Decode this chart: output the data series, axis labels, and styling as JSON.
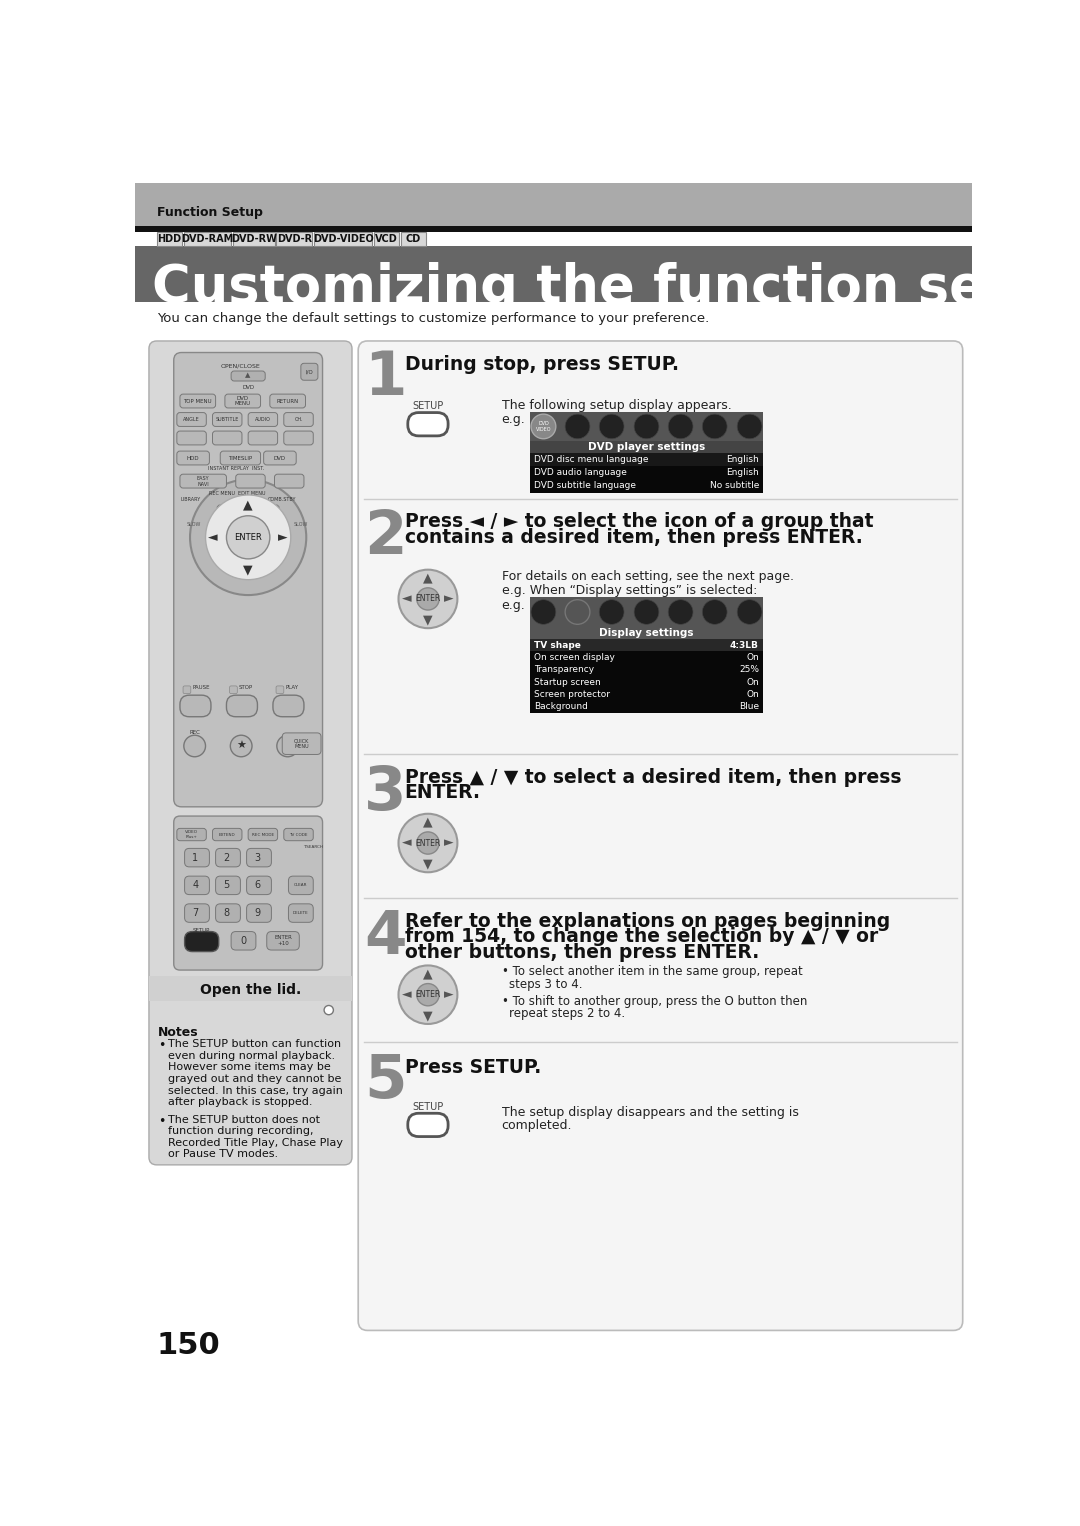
{
  "page_bg": "#ffffff",
  "header_bg": "#aaaaaa",
  "header_text": "Function Setup",
  "black_bar_color": "#111111",
  "title_bg": "#666666",
  "title_text": "Customizing the function settings",
  "title_color": "#ffffff",
  "subtitle_text": "You can change the default settings to customize performance to your preference.",
  "media_labels": [
    "HDD",
    "DVD-RAM",
    "DVD-RW",
    "DVD-R",
    "DVD-VIDEO",
    "VCD",
    "CD"
  ],
  "step1_title": "During stop, press SETUP.",
  "step1_desc": "The following setup display appears.",
  "step1_eg": "e.g.",
  "step2_title_line1": "Press ◄ / ► to select the icon of a group that",
  "step2_title_line2": "contains a desired item, then press ENTER.",
  "step2_desc1": "For details on each setting, see the next page.",
  "step2_desc2": "e.g. When “Display settings” is selected:",
  "step2_eg": "e.g.",
  "step3_title_line1": "Press ▲ / ▼ to select a desired item, then press",
  "step3_title_line2": "ENTER.",
  "step4_title_line1": "Refer to the explanations on pages beginning",
  "step4_title_line2": "from 154, to change the selection by ▲ / ▼ or",
  "step4_title_line3": "other buttons, then press ENTER.",
  "step4_bullet1_line1": "To select another item in the same group, repeat",
  "step4_bullet1_line2": "steps 3 to 4.",
  "step4_bullet2_line1": "To shift to another group, press the O button then",
  "step4_bullet2_line2": "repeat steps 2 to 4.",
  "step5_title": "Press SETUP.",
  "step5_desc_line1": "The setup display disappears and the setting is",
  "step5_desc_line2": "completed.",
  "notes_title": "Notes",
  "note1_lines": [
    "The SETUP button can function",
    "even during normal playback.",
    "However some items may be",
    "grayed out and they cannot be",
    "selected. In this case, try again",
    "after playback is stopped."
  ],
  "note2_lines": [
    "The SETUP button does not",
    "function during recording,",
    "Recorded Title Play, Chase Play",
    "or Pause TV modes."
  ],
  "open_lid_text": "Open the lid.",
  "page_number": "150",
  "dvd_player_rows": [
    [
      "DVD disc menu language",
      "English"
    ],
    [
      "DVD audio language",
      "English"
    ],
    [
      "DVD subtitle language",
      "No subtitle"
    ]
  ],
  "display_rows": [
    [
      "TV shape",
      "4:3LB"
    ],
    [
      "On screen display",
      "On"
    ],
    [
      "Transparency",
      "25%"
    ],
    [
      "Startup screen",
      "On"
    ],
    [
      "Screen protector",
      "On"
    ],
    [
      "Background",
      "Blue"
    ]
  ]
}
